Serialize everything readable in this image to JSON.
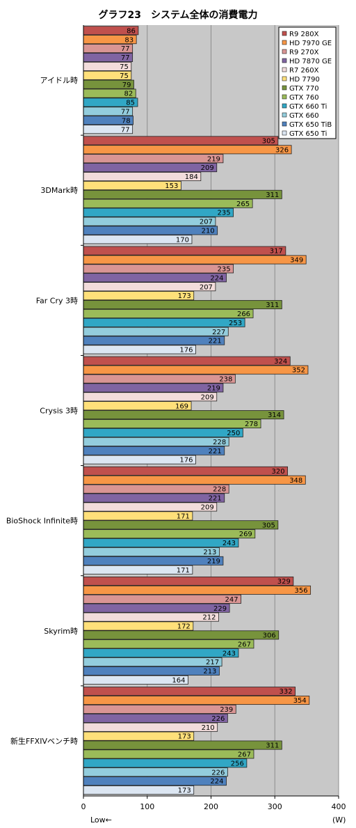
{
  "chart_data": {
    "type": "bar",
    "orientation": "horizontal",
    "title": "グラフ23　システム全体の消費電力",
    "xlabel": "",
    "ylabel": "",
    "unit": "(W)",
    "low_note": "Low←",
    "xlim": [
      0,
      400
    ],
    "xticks": [
      0,
      100,
      200,
      300,
      400
    ],
    "grid": true,
    "legend_position": "top-right",
    "categories": [
      "アイドル時",
      "3DMark時",
      "Far Cry 3時",
      "Crysis 3時",
      "BioShock Infinite時",
      "Skyrim時",
      "新生FFXIVベンチ時"
    ],
    "series": [
      {
        "name": "R9 280X",
        "color": "#c0504d",
        "values": [
          86,
          305,
          317,
          324,
          320,
          329,
          332
        ]
      },
      {
        "name": "HD 7970 GE",
        "color": "#f79646",
        "values": [
          83,
          326,
          349,
          352,
          348,
          356,
          354
        ]
      },
      {
        "name": "R9 270X",
        "color": "#d99594",
        "values": [
          77,
          219,
          235,
          238,
          228,
          247,
          239
        ]
      },
      {
        "name": "HD 7870 GE",
        "color": "#8064a2",
        "values": [
          77,
          209,
          224,
          219,
          221,
          229,
          226
        ]
      },
      {
        "name": "R7 260X",
        "color": "#f2dcdb",
        "values": [
          75,
          184,
          207,
          209,
          209,
          212,
          210
        ]
      },
      {
        "name": "HD 7790",
        "color": "#ffe07a",
        "values": [
          75,
          153,
          173,
          169,
          171,
          172,
          173
        ]
      },
      {
        "name": "GTX 770",
        "color": "#77933c",
        "values": [
          79,
          311,
          311,
          314,
          305,
          306,
          311
        ]
      },
      {
        "name": "GTX 760",
        "color": "#9bbb59",
        "values": [
          82,
          265,
          266,
          278,
          269,
          267,
          267
        ]
      },
      {
        "name": "GTX 660 Ti",
        "color": "#31a7c5",
        "values": [
          85,
          235,
          253,
          250,
          243,
          243,
          256
        ]
      },
      {
        "name": "GTX 660",
        "color": "#93cddd",
        "values": [
          77,
          207,
          227,
          228,
          213,
          217,
          226
        ]
      },
      {
        "name": "GTX 650 TiB",
        "color": "#4f81bd",
        "values": [
          78,
          210,
          221,
          221,
          219,
          213,
          224
        ]
      },
      {
        "name": "GTX 650 Ti",
        "color": "#dce6f2",
        "values": [
          77,
          170,
          176,
          176,
          171,
          164,
          173
        ]
      }
    ]
  }
}
